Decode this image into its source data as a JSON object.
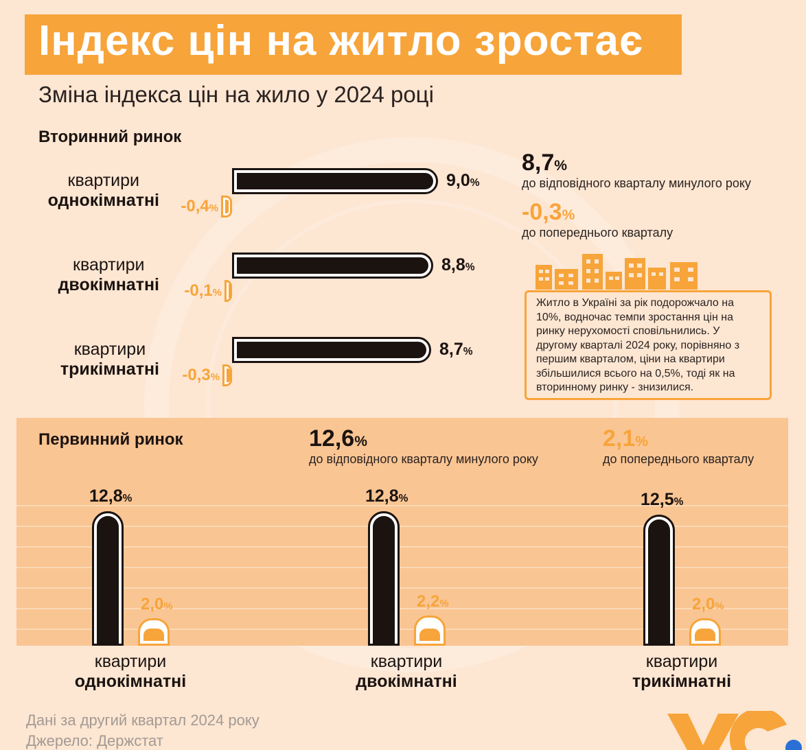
{
  "title": "Індекс цін на житло зростає",
  "subtitle": "Зміна індекса цін на жило у 2024 році",
  "secondary": {
    "section_title": "Вторинний ринок",
    "summary": {
      "yoy_value": "8,7",
      "yoy_unit": "%",
      "yoy_label": "до відповідного кварталу минулого року",
      "qoq_value": "-0,3",
      "qoq_unit": "%",
      "qoq_label": "до попереднього кварталу"
    },
    "info_text": "Житло в Україні за рік подорожчало на 10%, водночас темпи зростання цін на ринку нерухомості сповільнились. У другому кварталі 2024 року, порівняно з першим кварталом, ціни на квартири збільшилися всього на 0,5%, тоді як на вторинному ринку - знизилися.",
    "items": [
      {
        "label_line1": "квартири",
        "label_line2": "однокімнатні",
        "yoy_text": "9,0",
        "qoq_text": "-0,4"
      },
      {
        "label_line1": "квартири",
        "label_line2": "двокімнатні",
        "yoy_text": "8,8",
        "qoq_text": "-0,1"
      },
      {
        "label_line1": "квартири",
        "label_line2": "трикімнатні",
        "yoy_text": "8,7",
        "qoq_text": "-0,3"
      }
    ]
  },
  "primary": {
    "section_title": "Первинний ринок",
    "summary": {
      "yoy_value": "12,6",
      "yoy_unit": "%",
      "yoy_label": "до відповідного кварталу минулого року",
      "qoq_value": "2,1",
      "qoq_unit": "%",
      "qoq_label": "до попереднього кварталу"
    },
    "items": [
      {
        "label_line1": "квартири",
        "label_line2": "однокімнатні",
        "yoy_text": "12,8",
        "qoq_text": "2,0"
      },
      {
        "label_line1": "квартири",
        "label_line2": "двокімнатні",
        "yoy_text": "12,8",
        "qoq_text": "2,2"
      },
      {
        "label_line1": "квартири",
        "label_line2": "трикімнатні",
        "yoy_text": "12,5",
        "qoq_text": "2,0"
      }
    ]
  },
  "footer": {
    "date_note": "Дані за другий квартал 2024 року",
    "source": "Джерело: Держстат"
  },
  "colors": {
    "accent": "#f7a43a",
    "dark": "#1b1310",
    "background": "#fde6d2",
    "panel": "#f9c593"
  },
  "chart_data": [
    {
      "type": "bar",
      "orientation": "horizontal",
      "categories": [
        "однокімнатні",
        "двокімнатні",
        "трикімнатні"
      ],
      "series": [
        {
          "values": [
            9.0,
            8.8,
            8.7
          ]
        },
        {
          "values": [
            -0.4,
            -0.1,
            -0.3
          ]
        }
      ]
    },
    {
      "type": "bar",
      "orientation": "vertical",
      "categories": [
        "однокімнатні",
        "двокімнатні",
        "трикімнатні"
      ],
      "series": [
        {
          "values": [
            12.8,
            12.8,
            12.5
          ]
        },
        {
          "values": [
            2.0,
            2.2,
            2.0
          ]
        }
      ]
    }
  ]
}
